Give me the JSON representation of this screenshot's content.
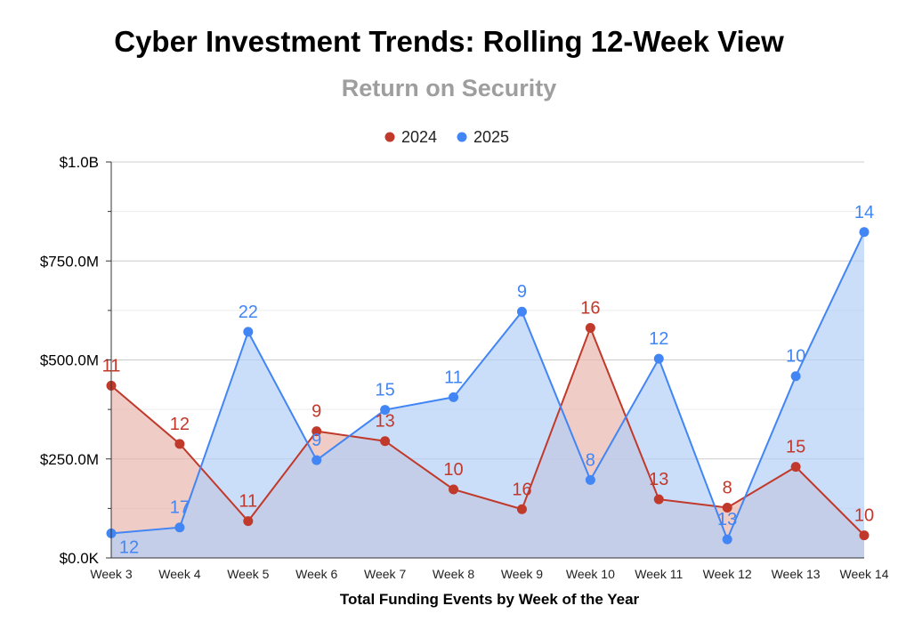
{
  "chart_data": {
    "type": "area",
    "title": "Cyber Investment Trends: Rolling 12-Week View",
    "subtitle": "Return on Security",
    "xlabel": "Total Funding Events by Week of the Year",
    "ylabel": "",
    "categories": [
      "Week 3",
      "Week 4",
      "Week 5",
      "Week 6",
      "Week 7",
      "Week 8",
      "Week 9",
      "Week 10",
      "Week 11",
      "Week 12",
      "Week 13",
      "Week 14"
    ],
    "ylim": [
      0,
      1000
    ],
    "y_ticks": [
      {
        "value": 0,
        "label": "$0.0K"
      },
      {
        "value": 250,
        "label": "$250.0M"
      },
      {
        "value": 500,
        "label": "$500.0M"
      },
      {
        "value": 750,
        "label": "$750.0M"
      },
      {
        "value": 1000,
        "label": "$1.0B"
      }
    ],
    "y_unit": "millions USD",
    "legend_position": "top",
    "grid": true,
    "series": [
      {
        "name": "2024",
        "color": "#c0392b",
        "fill": "#e8b6ae",
        "values": [
          435,
          288,
          93,
          320,
          295,
          173,
          123,
          581,
          148,
          127,
          230,
          57
        ],
        "labels": [
          "11",
          "12",
          "11",
          "9",
          "13",
          "10",
          "16",
          "16",
          "13",
          "8",
          "15",
          "10"
        ]
      },
      {
        "name": "2025",
        "color": "#4285f4",
        "fill": "#b3cef7",
        "values": [
          62,
          77,
          571,
          247,
          374,
          406,
          622,
          197,
          503,
          47,
          459,
          823
        ],
        "labels": [
          "12",
          "17",
          "22",
          "9",
          "15",
          "11",
          "9",
          "8",
          "12",
          "13",
          "10",
          "14"
        ]
      }
    ]
  }
}
